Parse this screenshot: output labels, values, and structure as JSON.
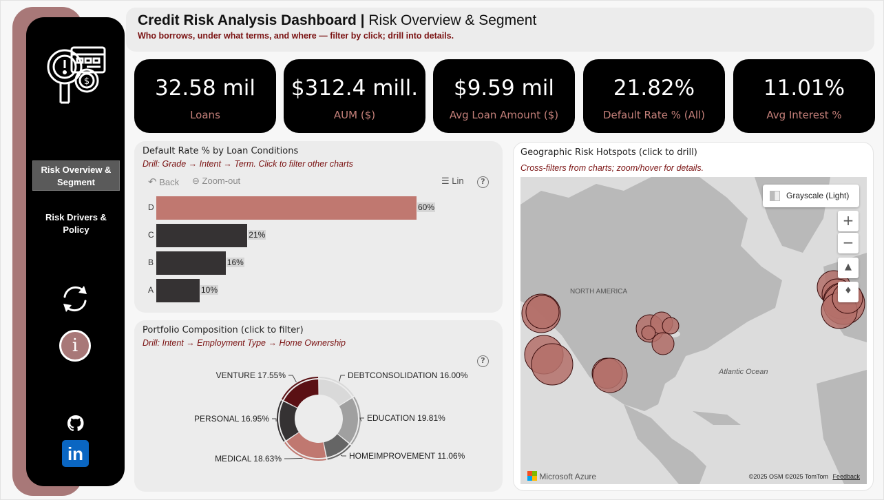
{
  "sidebar": {
    "nav": [
      {
        "label": "Risk Overview & Segment"
      },
      {
        "label": "Risk Drivers & Policy"
      }
    ],
    "info_glyph": "i",
    "linkedin_glyph": "in",
    "icons": [
      "risk-analysis-logo-icon",
      "refresh-icon",
      "info-icon",
      "github-icon",
      "linkedin-icon"
    ]
  },
  "header": {
    "title_bold": "Credit Risk Analysis Dashboard |",
    "title_rest": " Risk Overview & Segment",
    "subtitle": "Who borrows, under what terms, and where — filter by click; drill into details."
  },
  "kpis": [
    {
      "value": "32.58 mil",
      "label": "Loans"
    },
    {
      "value": "$312.4 mill.",
      "label": "AUM ($)"
    },
    {
      "value": "$9.59 mil",
      "label": "Avg Loan Amount ($)"
    },
    {
      "value": "21.82%",
      "label": "Default Rate % (All)"
    },
    {
      "value": "11.01%",
      "label": "Avg Interest %"
    }
  ],
  "bar_panel": {
    "title": "Default Rate % by Loan Conditions",
    "subtitle": "Drill: Grade → Intent → Term. Click to filter other charts",
    "back_label": "Back",
    "zoom_label": "Zoom-out",
    "lin_label": "Lin",
    "help_glyph": "?",
    "chart_data": {
      "type": "bar",
      "orientation": "horizontal",
      "categories": [
        "D",
        "C",
        "B",
        "A"
      ],
      "values": [
        60,
        21,
        16,
        10
      ],
      "labels": [
        "60%",
        "21%",
        "16%",
        "10%"
      ],
      "colors": [
        "#c07870",
        "#353233",
        "#353233",
        "#353233"
      ],
      "xlim": [
        0,
        60
      ]
    }
  },
  "donut_panel": {
    "title": "Portfolio Composition (click to filter)",
    "subtitle": "Drill: Intent → Employment Type → Home Ownership",
    "help_glyph": "?",
    "chart_data": {
      "type": "pie",
      "style": "donut",
      "slices": [
        {
          "name": "DEBTCONSOLIDATION",
          "value": 16.0,
          "label": "DEBTCONSOLIDATION 16.00%",
          "color": "#d9d9d9"
        },
        {
          "name": "EDUCATION",
          "value": 19.81,
          "label": "EDUCATION 19.81%",
          "color": "#a0a0a0"
        },
        {
          "name": "HOMEIMPROVEMENT",
          "value": 11.06,
          "label": "HOMEIMPROVEMENT 11.06%",
          "color": "#656565"
        },
        {
          "name": "MEDICAL",
          "value": 18.63,
          "label": "MEDICAL 18.63%",
          "color": "#c07870"
        },
        {
          "name": "PERSONAL",
          "value": 16.95,
          "label": "PERSONAL 16.95%",
          "color": "#353233"
        },
        {
          "name": "VENTURE",
          "value": 17.55,
          "label": "VENTURE 17.55%",
          "color": "#5a1014"
        }
      ]
    }
  },
  "map_panel": {
    "title": "Geographic Risk Hotspots (click to drill)",
    "subtitle": "Cross-filters from charts; zoom/hover for details.",
    "style_label": "Grayscale (Light)",
    "zoom_in_glyph": "+",
    "zoom_out_glyph": "−",
    "region_label": "NORTH AMERICA",
    "ocean_label": "Atlantic Ocean",
    "brand": "Microsoft Azure",
    "attribution": "©2025 OSM  ©2025 TomTom",
    "feedback": "Feedback",
    "bubble_color": "#b4706a"
  }
}
